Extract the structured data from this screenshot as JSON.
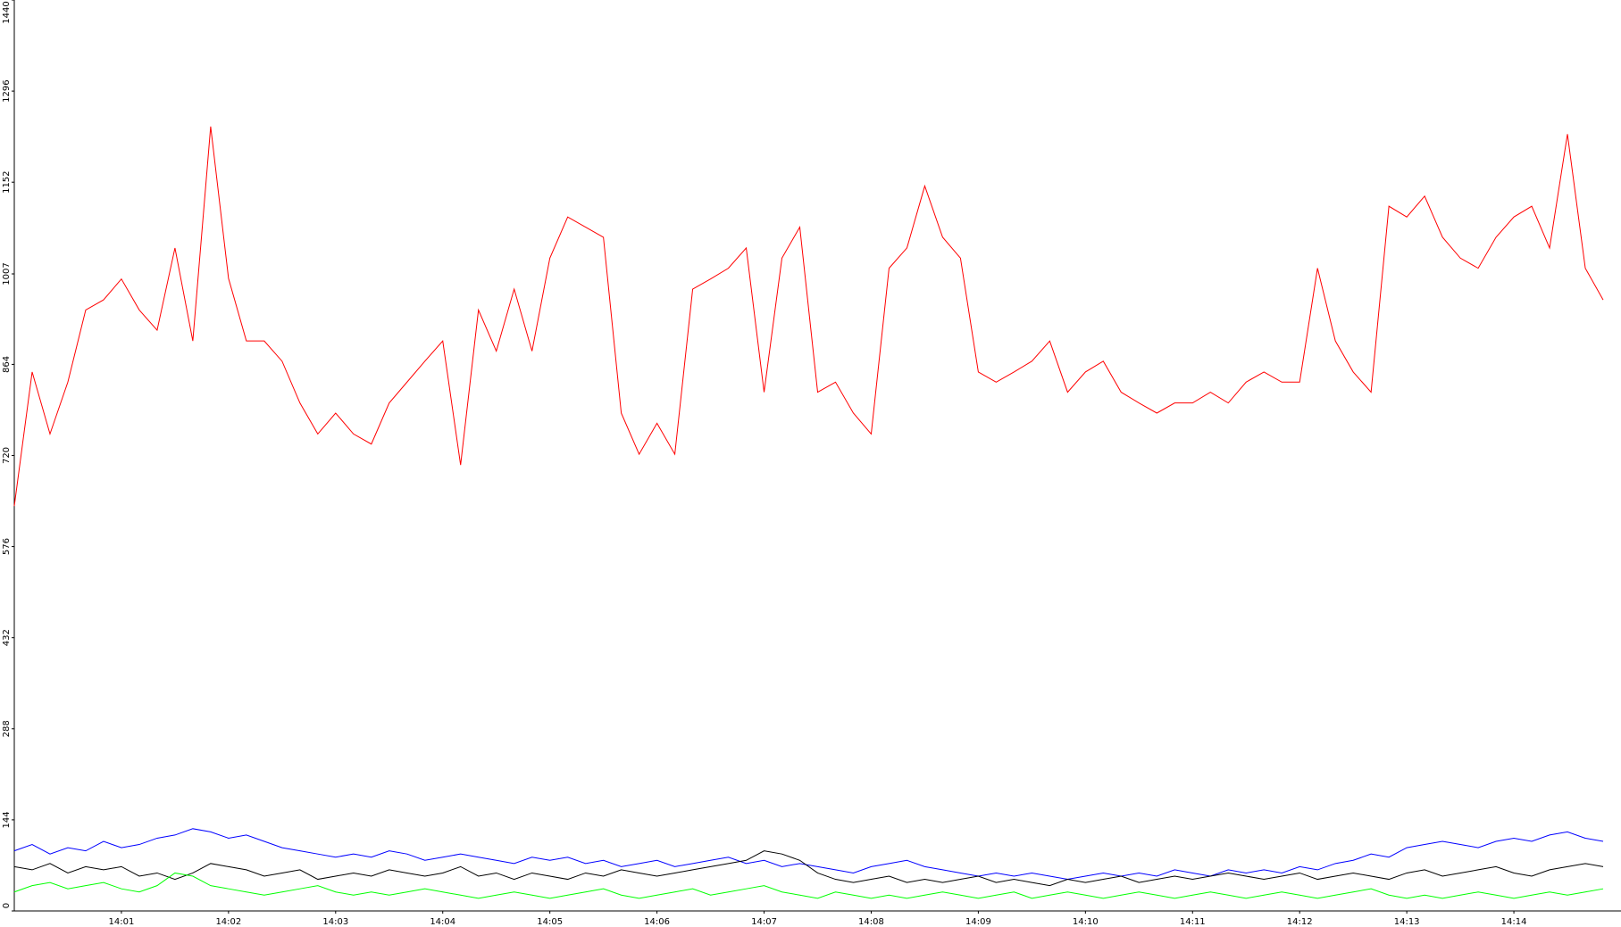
{
  "chart_data": {
    "type": "line",
    "categories": [
      null,
      null,
      null,
      null,
      null,
      null,
      "14:01",
      null,
      null,
      null,
      null,
      null,
      "14:02",
      null,
      null,
      null,
      null,
      null,
      "14:03",
      null,
      null,
      null,
      null,
      null,
      "14:04",
      null,
      null,
      null,
      null,
      null,
      "14:05",
      null,
      null,
      null,
      null,
      null,
      "14:06",
      null,
      null,
      null,
      null,
      null,
      "14:07",
      null,
      null,
      null,
      null,
      null,
      "14:08",
      null,
      null,
      null,
      null,
      null,
      "14:09",
      null,
      null,
      null,
      null,
      null,
      "14:10",
      null,
      null,
      null,
      null,
      null,
      "14:11",
      null,
      null,
      null,
      null,
      null,
      "14:12",
      null,
      null,
      null,
      null,
      null,
      "14:13",
      null,
      null,
      null,
      null,
      null,
      "14:14",
      null,
      null,
      null,
      null,
      null
    ],
    "series": [
      {
        "color": "#ff0000",
        "values": [
          640,
          852,
          754,
          836,
          950,
          966,
          999,
          950,
          918,
          1048,
          901,
          1240,
          1000,
          901,
          901,
          869,
          803,
          754,
          787,
          754,
          738,
          803,
          836,
          869,
          901,
          705,
          950,
          885,
          983,
          885,
          1032,
          1097,
          1081,
          1065,
          787,
          722,
          771,
          722,
          983,
          999,
          1016,
          1048,
          820,
          1032,
          1081,
          820,
          836,
          787,
          754,
          1016,
          1048,
          1146,
          1065,
          1032,
          852,
          836,
          852,
          869,
          901,
          820,
          852,
          869,
          820,
          803,
          787,
          803,
          803,
          820,
          803,
          836,
          852,
          836,
          836,
          1016,
          901,
          852,
          820,
          1114,
          1097,
          1130,
          1065,
          1032,
          1016,
          1065,
          1097,
          1114,
          1048,
          1228,
          1016,
          966
        ]
      },
      {
        "color": "#0000ff",
        "values": [
          95,
          105,
          90,
          100,
          95,
          110,
          100,
          105,
          115,
          120,
          130,
          125,
          115,
          120,
          110,
          100,
          95,
          90,
          85,
          90,
          85,
          95,
          90,
          80,
          85,
          90,
          85,
          80,
          75,
          85,
          80,
          85,
          75,
          80,
          70,
          75,
          80,
          70,
          75,
          80,
          85,
          75,
          80,
          70,
          75,
          70,
          65,
          60,
          70,
          75,
          80,
          70,
          65,
          60,
          55,
          60,
          55,
          60,
          55,
          50,
          55,
          60,
          55,
          60,
          55,
          65,
          60,
          55,
          65,
          60,
          65,
          60,
          70,
          65,
          75,
          80,
          90,
          85,
          100,
          105,
          110,
          105,
          100,
          110,
          115,
          110,
          120,
          125,
          115,
          110
        ]
      },
      {
        "color": "#000000",
        "values": [
          70,
          65,
          75,
          60,
          70,
          65,
          70,
          55,
          60,
          50,
          60,
          75,
          70,
          65,
          55,
          60,
          65,
          50,
          55,
          60,
          55,
          65,
          60,
          55,
          60,
          70,
          55,
          60,
          50,
          60,
          55,
          50,
          60,
          55,
          65,
          60,
          55,
          60,
          65,
          70,
          75,
          80,
          95,
          90,
          80,
          60,
          50,
          45,
          50,
          55,
          45,
          50,
          45,
          50,
          55,
          45,
          50,
          45,
          40,
          50,
          45,
          50,
          55,
          45,
          50,
          55,
          50,
          55,
          60,
          55,
          50,
          55,
          60,
          50,
          55,
          60,
          55,
          50,
          60,
          65,
          55,
          60,
          65,
          70,
          60,
          55,
          65,
          70,
          75,
          70
        ]
      },
      {
        "color": "#00ff00",
        "values": [
          30,
          40,
          45,
          35,
          40,
          45,
          35,
          30,
          40,
          60,
          55,
          40,
          35,
          30,
          25,
          30,
          35,
          40,
          30,
          25,
          30,
          25,
          30,
          35,
          30,
          25,
          20,
          25,
          30,
          25,
          20,
          25,
          30,
          35,
          25,
          20,
          25,
          30,
          35,
          25,
          30,
          35,
          40,
          30,
          25,
          20,
          30,
          25,
          20,
          25,
          20,
          25,
          30,
          25,
          20,
          25,
          30,
          20,
          25,
          30,
          25,
          20,
          25,
          30,
          25,
          20,
          25,
          30,
          25,
          20,
          25,
          30,
          25,
          20,
          25,
          30,
          35,
          25,
          20,
          25,
          20,
          25,
          30,
          25,
          20,
          25,
          30,
          25,
          30,
          35
        ]
      }
    ],
    "ylim": [
      0,
      1440
    ],
    "yticks": [
      0,
      144,
      288,
      432,
      576,
      720,
      864,
      1007,
      1152,
      1296,
      1440
    ],
    "grid": false
  }
}
